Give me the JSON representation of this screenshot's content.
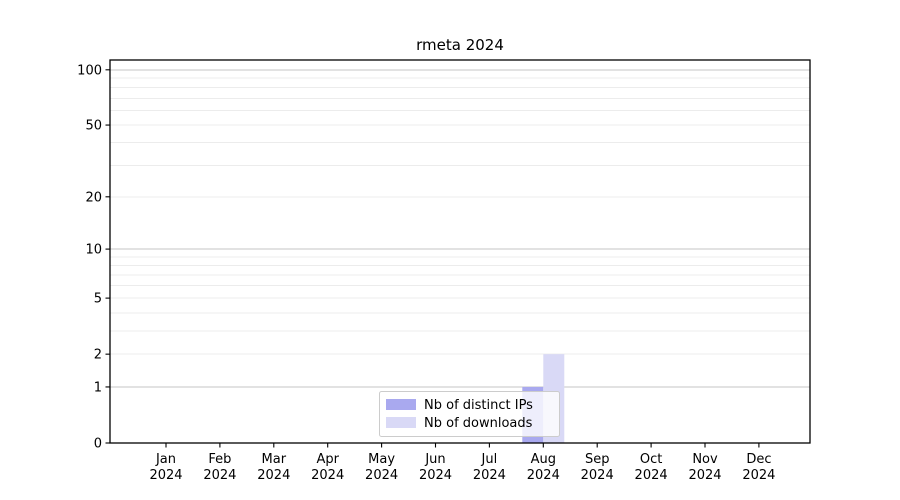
{
  "page": {
    "background": "#ffffff"
  },
  "chart_data": {
    "type": "bar",
    "title": "rmeta 2024",
    "categories": [
      "Jan",
      "Feb",
      "Mar",
      "Apr",
      "May",
      "Jun",
      "Jul",
      "Aug",
      "Sep",
      "Oct",
      "Nov",
      "Dec"
    ],
    "category_sublabel": "2024",
    "series": [
      {
        "name": "Nb of distinct IPs",
        "color": "#a9a9ef",
        "values": [
          0,
          0,
          0,
          0,
          0,
          0,
          0,
          1,
          0,
          0,
          0,
          0
        ]
      },
      {
        "name": "Nb of downloads",
        "color": "#d9d9f6",
        "values": [
          0,
          0,
          0,
          0,
          0,
          0,
          0,
          2,
          0,
          0,
          0,
          0
        ]
      }
    ],
    "xlabel": "",
    "ylabel": "",
    "yscale": "log1p",
    "ylim": [
      0,
      113
    ],
    "yticks": [
      0,
      1,
      2,
      5,
      10,
      20,
      50,
      100
    ],
    "grid": {
      "on": true,
      "major_values": [
        1,
        10,
        100
      ],
      "minor_values": [
        2,
        3,
        4,
        5,
        6,
        7,
        8,
        9,
        20,
        30,
        40,
        50,
        60,
        70,
        80,
        90
      ],
      "major_color": "#c6c6c6",
      "minor_color": "#ececec"
    },
    "legend": {
      "position": "inside-bottom-center",
      "background": "#ffffff",
      "border_color": "#cccccc",
      "entries": [
        "Nb of distinct IPs",
        "Nb of downloads"
      ]
    },
    "axis_color": "#000000",
    "text_color": "#000000"
  }
}
